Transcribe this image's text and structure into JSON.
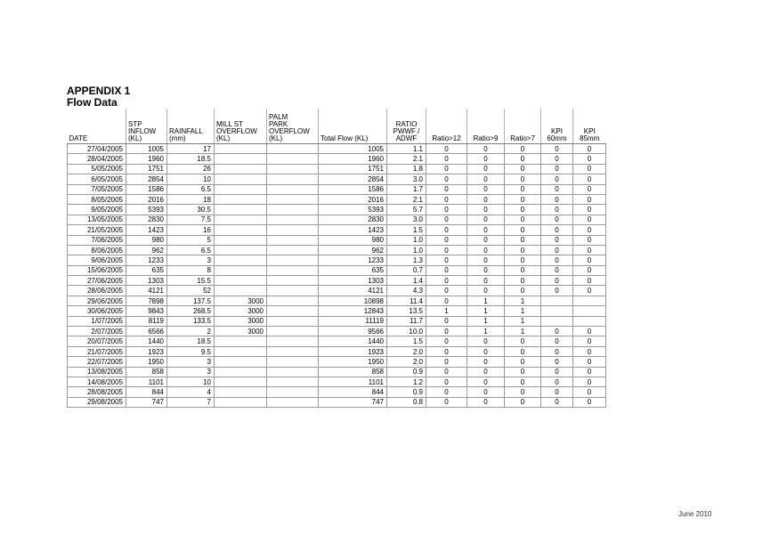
{
  "heading": {
    "line1": "APPENDIX 1",
    "line2": "Flow Data"
  },
  "columns": [
    "DATE",
    "STP\nINFLOW\n(KL)",
    "RAINFALL\n(mm)",
    "MILL ST\nOVERFLOW\n(KL)",
    "PALM\nPARK\nOVERFLOW\n(KL)",
    "Total Flow (KL)",
    "RATIO\nPWWF /\nADWF",
    "Ratio>12",
    "Ratio>9",
    "Ratio>7",
    "KPI\n60mm",
    "KPI\n85mm"
  ],
  "rows": [
    [
      "27/04/2005",
      "1005",
      "17",
      "",
      "",
      "1005",
      "1.1",
      "0",
      "0",
      "0",
      "0",
      "0"
    ],
    [
      "28/04/2005",
      "1960",
      "18.5",
      "",
      "",
      "1960",
      "2.1",
      "0",
      "0",
      "0",
      "0",
      "0"
    ],
    [
      "5/05/2005",
      "1751",
      "26",
      "",
      "",
      "1751",
      "1.8",
      "0",
      "0",
      "0",
      "0",
      "0"
    ],
    [
      "6/05/2005",
      "2854",
      "10",
      "",
      "",
      "2854",
      "3.0",
      "0",
      "0",
      "0",
      "0",
      "0"
    ],
    [
      "7/05/2005",
      "1586",
      "6.5",
      "",
      "",
      "1586",
      "1.7",
      "0",
      "0",
      "0",
      "0",
      "0"
    ],
    [
      "8/05/2005",
      "2016",
      "18",
      "",
      "",
      "2016",
      "2.1",
      "0",
      "0",
      "0",
      "0",
      "0"
    ],
    [
      "9/05/2005",
      "5393",
      "30.5",
      "",
      "",
      "5393",
      "5.7",
      "0",
      "0",
      "0",
      "0",
      "0"
    ],
    [
      "13/05/2005",
      "2830",
      "7.5",
      "",
      "",
      "2830",
      "3.0",
      "0",
      "0",
      "0",
      "0",
      "0"
    ],
    [
      "21/05/2005",
      "1423",
      "16",
      "",
      "",
      "1423",
      "1.5",
      "0",
      "0",
      "0",
      "0",
      "0"
    ],
    [
      "7/06/2005",
      "980",
      "5",
      "",
      "",
      "980",
      "1.0",
      "0",
      "0",
      "0",
      "0",
      "0"
    ],
    [
      "8/06/2005",
      "962",
      "6.5",
      "",
      "",
      "962",
      "1.0",
      "0",
      "0",
      "0",
      "0",
      "0"
    ],
    [
      "9/06/2005",
      "1233",
      "3",
      "",
      "",
      "1233",
      "1.3",
      "0",
      "0",
      "0",
      "0",
      "0"
    ],
    [
      "15/06/2005",
      "635",
      "8",
      "",
      "",
      "635",
      "0.7",
      "0",
      "0",
      "0",
      "0",
      "0"
    ],
    [
      "27/06/2005",
      "1303",
      "15.5",
      "",
      "",
      "1303",
      "1.4",
      "0",
      "0",
      "0",
      "0",
      "0"
    ],
    [
      "28/06/2005",
      "4121",
      "52",
      "",
      "",
      "4121",
      "4.3",
      "0",
      "0",
      "0",
      "0",
      "0"
    ],
    [
      "29/06/2005",
      "7898",
      "137.5",
      "3000",
      "",
      "10898",
      "11.4",
      "0",
      "1",
      "1",
      "",
      ""
    ],
    [
      "30/06/2005",
      "9843",
      "268.5",
      "3000",
      "",
      "12843",
      "13.5",
      "1",
      "1",
      "1",
      "",
      ""
    ],
    [
      "1/07/2005",
      "8119",
      "133.5",
      "3000",
      "",
      "11119",
      "11.7",
      "0",
      "1",
      "1",
      "",
      ""
    ],
    [
      "2/07/2005",
      "6566",
      "2",
      "3000",
      "",
      "9566",
      "10.0",
      "0",
      "1",
      "1",
      "0",
      "0"
    ],
    [
      "20/07/2005",
      "1440",
      "18.5",
      "",
      "",
      "1440",
      "1.5",
      "0",
      "0",
      "0",
      "0",
      "0"
    ],
    [
      "21/07/2005",
      "1923",
      "9.5",
      "",
      "",
      "1923",
      "2.0",
      "0",
      "0",
      "0",
      "0",
      "0"
    ],
    [
      "22/07/2005",
      "1950",
      "3",
      "",
      "",
      "1950",
      "2.0",
      "0",
      "0",
      "0",
      "0",
      "0"
    ],
    [
      "13/08/2005",
      "858",
      "3",
      "",
      "",
      "858",
      "0.9",
      "0",
      "0",
      "0",
      "0",
      "0"
    ],
    [
      "14/08/2005",
      "1101",
      "10",
      "",
      "",
      "1101",
      "1.2",
      "0",
      "0",
      "0",
      "0",
      "0"
    ],
    [
      "28/08/2005",
      "844",
      "4",
      "",
      "",
      "844",
      "0.9",
      "0",
      "0",
      "0",
      "0",
      "0"
    ],
    [
      "29/08/2005",
      "747",
      "7",
      "",
      "",
      "747",
      "0.8",
      "0",
      "0",
      "0",
      "0",
      "0"
    ]
  ],
  "footer": "June 2010"
}
